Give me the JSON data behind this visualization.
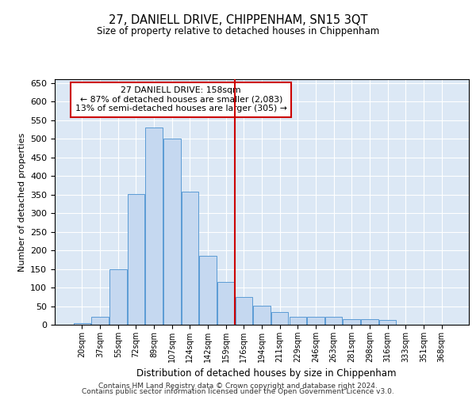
{
  "title": "27, DANIELL DRIVE, CHIPPENHAM, SN15 3QT",
  "subtitle": "Size of property relative to detached houses in Chippenham",
  "xlabel": "Distribution of detached houses by size in Chippenham",
  "ylabel": "Number of detached properties",
  "categories": [
    "20sqm",
    "37sqm",
    "55sqm",
    "72sqm",
    "89sqm",
    "107sqm",
    "124sqm",
    "142sqm",
    "159sqm",
    "176sqm",
    "194sqm",
    "211sqm",
    "229sqm",
    "246sqm",
    "263sqm",
    "281sqm",
    "298sqm",
    "316sqm",
    "333sqm",
    "351sqm",
    "368sqm"
  ],
  "values": [
    5,
    22,
    150,
    352,
    530,
    500,
    358,
    185,
    115,
    75,
    52,
    35,
    22,
    22,
    22,
    15,
    15,
    12,
    0,
    0,
    0
  ],
  "bar_color": "#c5d8f0",
  "bar_edge_color": "#5b9bd5",
  "highlight_index": 8,
  "vline_color": "#cc0000",
  "vline_x": 8,
  "ylim": [
    0,
    660
  ],
  "yticks": [
    0,
    50,
    100,
    150,
    200,
    250,
    300,
    350,
    400,
    450,
    500,
    550,
    600,
    650
  ],
  "bg_color": "#dce8f5",
  "annotation_text": "27 DANIELL DRIVE: 158sqm\n← 87% of detached houses are smaller (2,083)\n13% of semi-detached houses are larger (305) →",
  "annotation_box_color": "#cc0000",
  "footnote1": "Contains HM Land Registry data © Crown copyright and database right 2024.",
  "footnote2": "Contains public sector information licensed under the Open Government Licence v3.0."
}
